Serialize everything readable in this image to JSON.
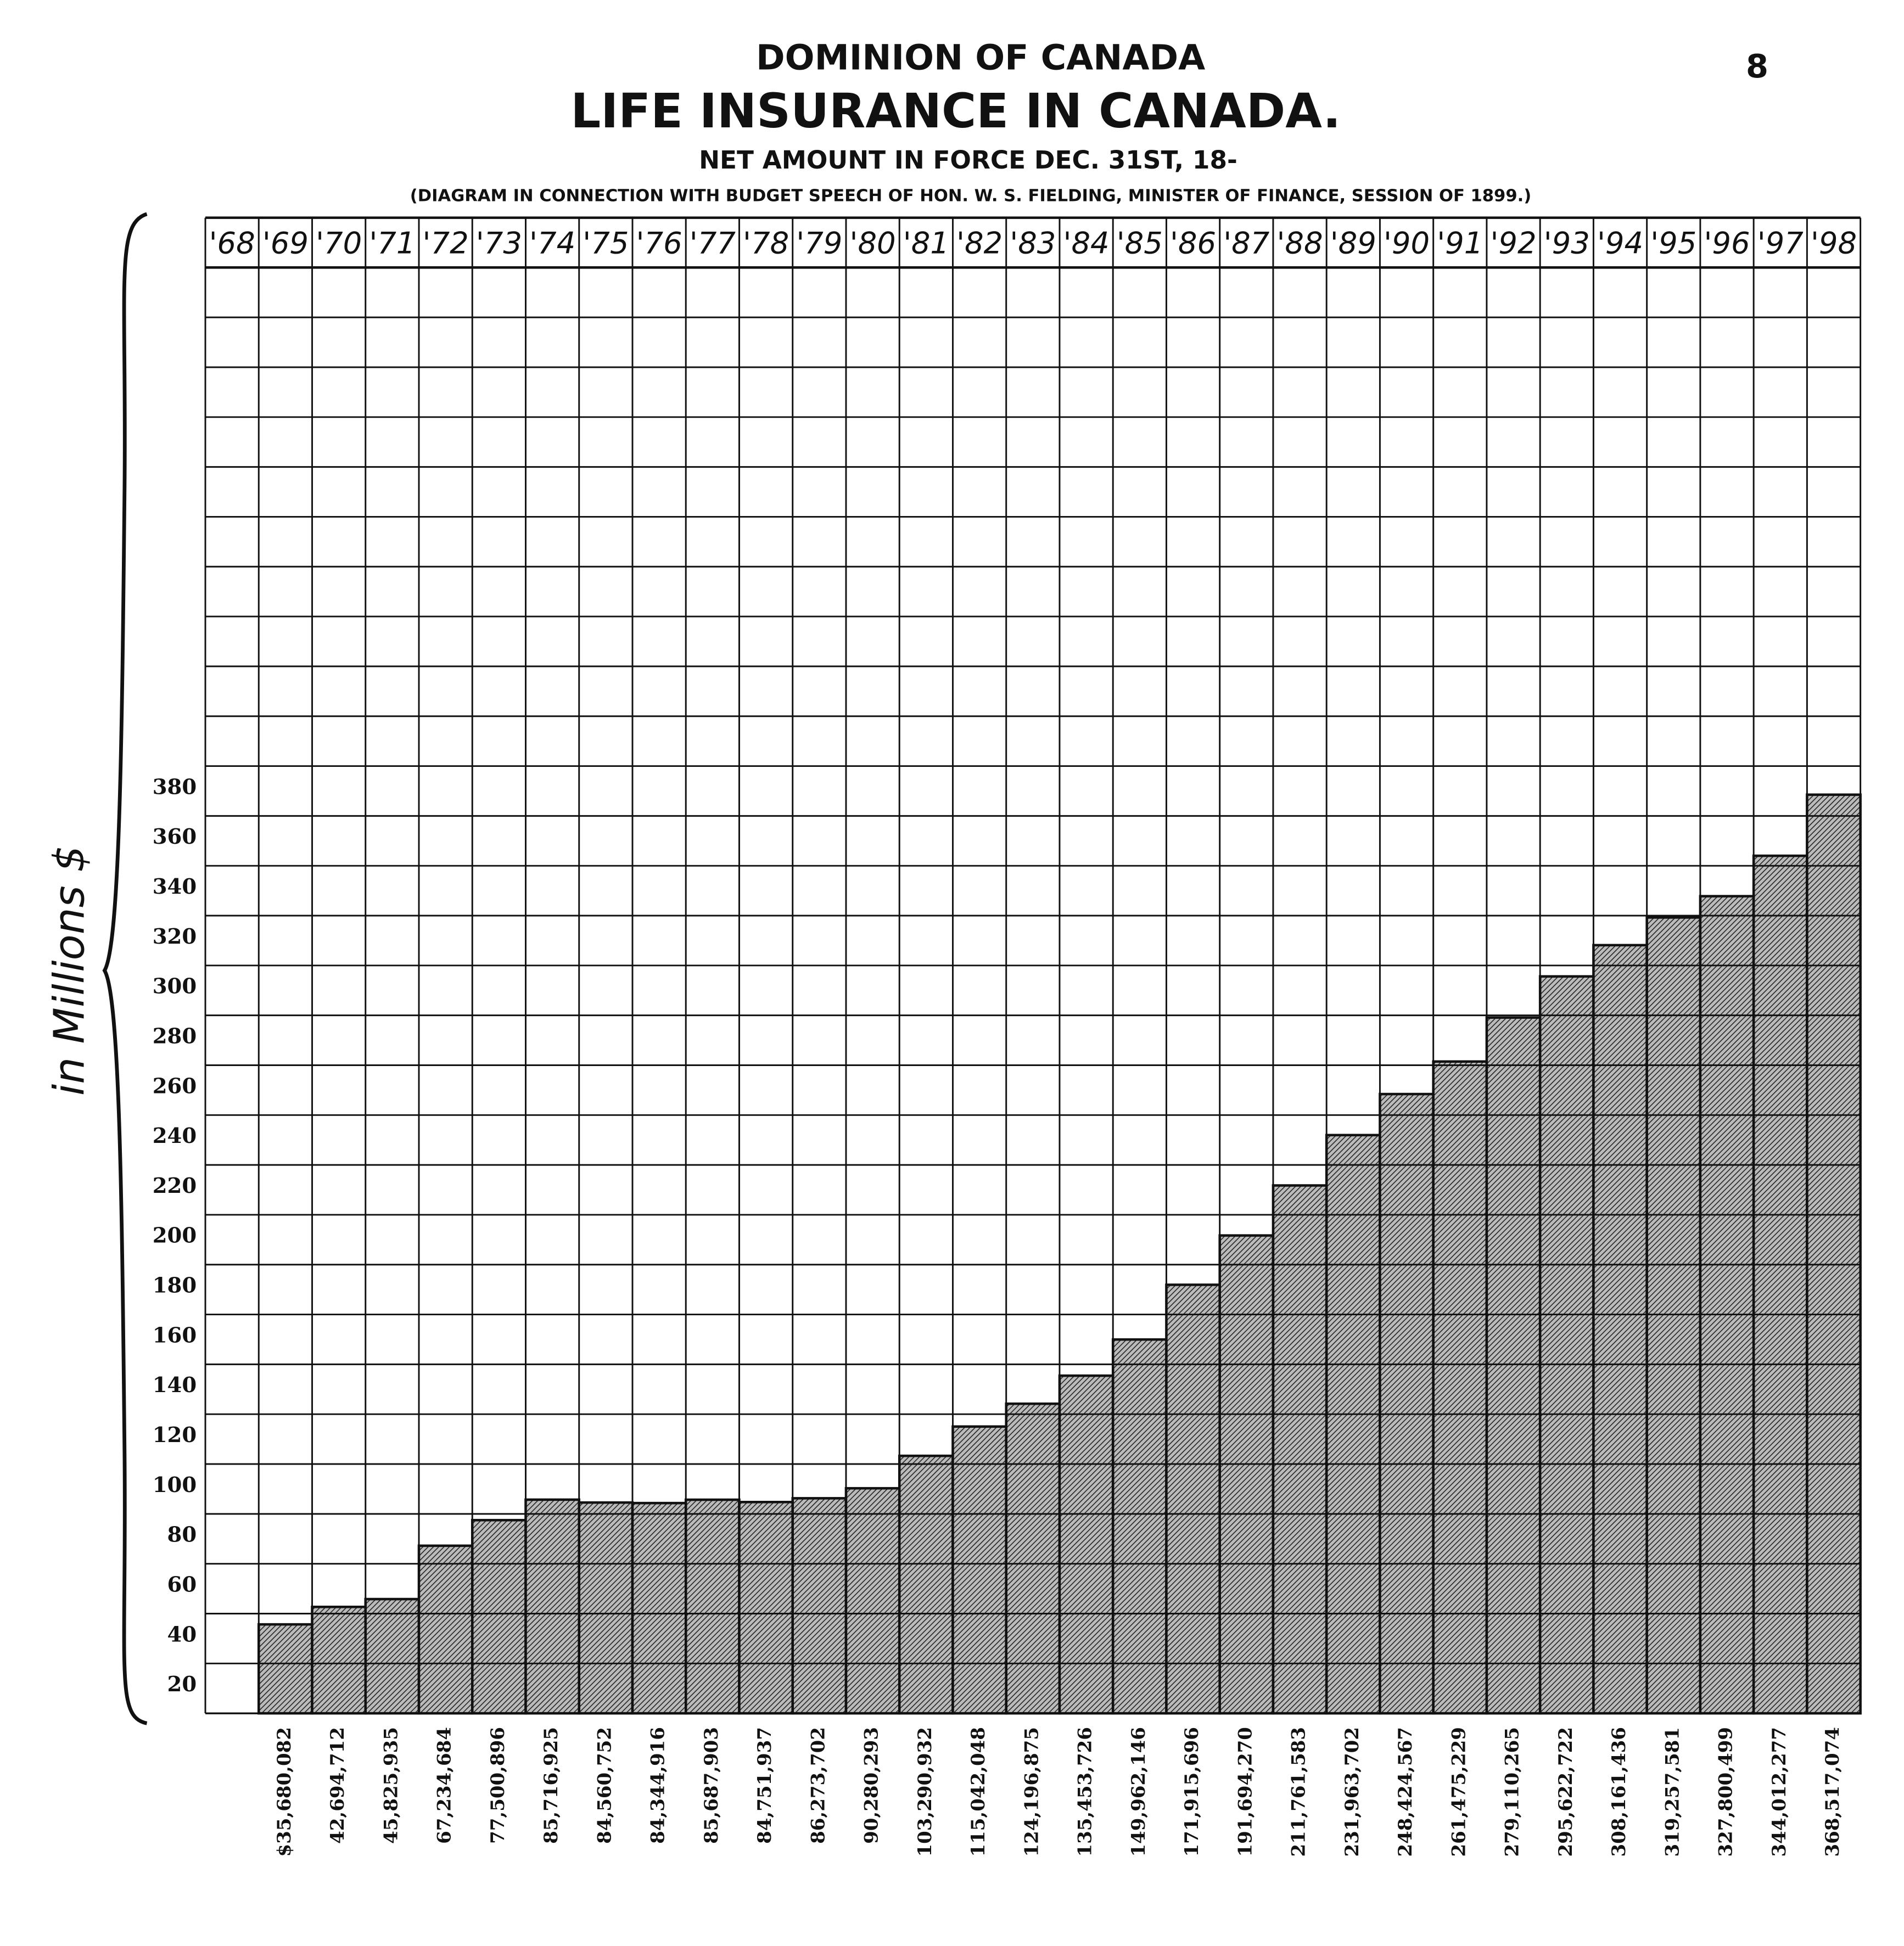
{
  "chart_data": {
    "type": "bar",
    "page_number": "8",
    "title": "DOMINION OF CANADA",
    "subtitle": "LIFE INSURANCE IN CANADA.",
    "heading": "NET AMOUNT IN FORCE DEC. 31ST, 18-",
    "note": "(DIAGRAM IN CONNECTION WITH BUDGET SPEECH OF HON. W. S. FIELDING, MINISTER OF FINANCE, SESSION OF 1899.)",
    "ylabel": "in Millions $",
    "categories": [
      "'68",
      "'69",
      "'70",
      "'71",
      "'72",
      "'73",
      "'74",
      "'75",
      "'76",
      "'77",
      "'78",
      "'79",
      "'80",
      "'81",
      "'82",
      "'83",
      "'84",
      "'85",
      "'86",
      "'87",
      "'88",
      "'89",
      "'90",
      "'91",
      "'92",
      "'93",
      "'94",
      "'95",
      "'96",
      "'97",
      "'98"
    ],
    "values": [
      null,
      35.680082,
      42.694712,
      45.825935,
      67.234684,
      77.500896,
      85.716925,
      84.560752,
      84.344916,
      85.687903,
      84.751937,
      86.273702,
      90.280293,
      103.290932,
      115.042048,
      124.196875,
      135.453726,
      149.962146,
      171.915696,
      191.69427,
      211.761583,
      231.963702,
      248.424567,
      261.475229,
      279.110265,
      295.622722,
      308.161436,
      319.257581,
      327.800499,
      344.012277,
      368.517074
    ],
    "value_labels": [
      null,
      "$35,680,082",
      "42,694,712",
      "45,825,935",
      "67,234,684",
      "77,500,896",
      "85,716,925",
      "84,560,752",
      "84,344,916",
      "85,687,903",
      "84,751,937",
      "86,273,702",
      "90,280,293",
      "103,290,932",
      "115,042,048",
      "124,196,875",
      "135,453,726",
      "149,962,146",
      "171,915,696",
      "191,694,270",
      "211,761,583",
      "231,963,702",
      "248,424,567",
      "261,475,229",
      "279,110,265",
      "295,622,722",
      "308,161,436",
      "319,257,581",
      "327,800,499",
      "344,012,277",
      "368,517,074"
    ],
    "color": "#777777",
    "ylim": [
      0,
      580
    ],
    "yticks": [
      20,
      40,
      60,
      80,
      100,
      120,
      140,
      160,
      180,
      200,
      220,
      240,
      260,
      280,
      300,
      320,
      340,
      360,
      380
    ],
    "grid": true
  }
}
